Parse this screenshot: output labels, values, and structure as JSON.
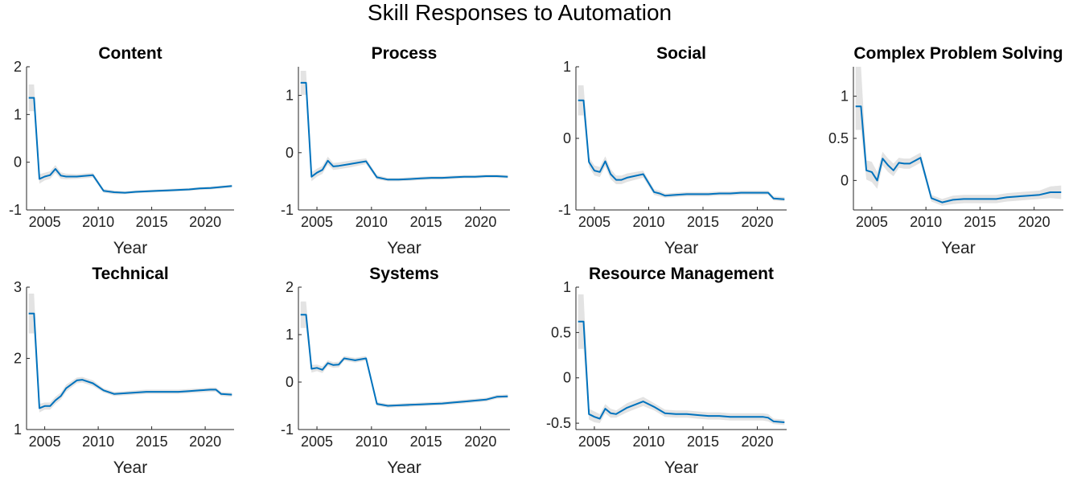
{
  "title": "Skill Responses to Automation",
  "colors": {
    "line": "#0072bd",
    "band": "#d9d9d9",
    "axis": "#262626"
  },
  "chart_data": [
    {
      "type": "line",
      "title": "Content",
      "xlabel": "Year",
      "ylabel": "",
      "xlim": [
        2003.3,
        2022.7
      ],
      "ylim": [
        -1,
        2
      ],
      "xticks": [
        2005,
        2010,
        2015,
        2020
      ],
      "yticks": [
        -1,
        0,
        1,
        2
      ],
      "ytick_labels": [
        "-1",
        "0",
        "1",
        "2"
      ],
      "x": [
        2003.5,
        2004,
        2004.5,
        2005,
        2005.5,
        2006,
        2006.5,
        2007,
        2008,
        2009.5,
        2010.5,
        2011.5,
        2012.5,
        2013.5,
        2014.5,
        2015.5,
        2016.5,
        2017.5,
        2018.5,
        2019.5,
        2020.5,
        2021.5,
        2022.5
      ],
      "y": [
        1.35,
        1.35,
        -0.35,
        -0.3,
        -0.27,
        -0.14,
        -0.28,
        -0.3,
        -0.3,
        -0.27,
        -0.6,
        -0.63,
        -0.64,
        -0.62,
        -0.61,
        -0.6,
        -0.59,
        -0.58,
        -0.57,
        -0.55,
        -0.54,
        -0.52,
        -0.5
      ],
      "lower": [
        1.07,
        1.07,
        -0.45,
        -0.38,
        -0.35,
        -0.22,
        -0.35,
        -0.36,
        -0.35,
        -0.32,
        -0.64,
        -0.67,
        -0.67,
        -0.65,
        -0.64,
        -0.63,
        -0.62,
        -0.61,
        -0.6,
        -0.58,
        -0.57,
        -0.55,
        -0.53
      ],
      "upper": [
        1.63,
        1.63,
        -0.25,
        -0.22,
        -0.19,
        -0.06,
        -0.21,
        -0.24,
        -0.25,
        -0.22,
        -0.56,
        -0.59,
        -0.61,
        -0.59,
        -0.58,
        -0.57,
        -0.56,
        -0.55,
        -0.54,
        -0.52,
        -0.51,
        -0.49,
        -0.47
      ]
    },
    {
      "type": "line",
      "title": "Process",
      "xlabel": "Year",
      "ylabel": "",
      "xlim": [
        2003.3,
        2022.7
      ],
      "ylim": [
        -1,
        1.5
      ],
      "xticks": [
        2005,
        2010,
        2015,
        2020
      ],
      "yticks": [
        -1,
        0,
        1
      ],
      "ytick_labels": [
        "-1",
        "0",
        "1"
      ],
      "x": [
        2003.5,
        2004,
        2004.5,
        2005,
        2005.5,
        2006,
        2006.5,
        2007,
        2008,
        2009.5,
        2010.5,
        2011.5,
        2012.5,
        2013.5,
        2014.5,
        2015.5,
        2016.5,
        2017.5,
        2018.5,
        2019.5,
        2020.5,
        2021.5,
        2022.5
      ],
      "y": [
        1.22,
        1.22,
        -0.42,
        -0.35,
        -0.3,
        -0.14,
        -0.24,
        -0.23,
        -0.2,
        -0.15,
        -0.43,
        -0.47,
        -0.47,
        -0.46,
        -0.45,
        -0.44,
        -0.44,
        -0.43,
        -0.42,
        -0.42,
        -0.41,
        -0.41,
        -0.42
      ],
      "lower": [
        1.01,
        1.01,
        -0.5,
        -0.42,
        -0.37,
        -0.21,
        -0.3,
        -0.29,
        -0.26,
        -0.2,
        -0.47,
        -0.5,
        -0.5,
        -0.49,
        -0.48,
        -0.47,
        -0.47,
        -0.46,
        -0.45,
        -0.45,
        -0.44,
        -0.44,
        -0.45
      ],
      "upper": [
        1.43,
        1.43,
        -0.34,
        -0.28,
        -0.23,
        -0.07,
        -0.18,
        -0.17,
        -0.14,
        -0.1,
        -0.39,
        -0.44,
        -0.44,
        -0.43,
        -0.42,
        -0.41,
        -0.41,
        -0.4,
        -0.39,
        -0.39,
        -0.38,
        -0.38,
        -0.39
      ]
    },
    {
      "type": "line",
      "title": "Social",
      "xlabel": "Year",
      "ylabel": "",
      "xlim": [
        2003.3,
        2022.7
      ],
      "ylim": [
        -1,
        1
      ],
      "xticks": [
        2005,
        2010,
        2015,
        2020
      ],
      "yticks": [
        -1,
        0,
        1
      ],
      "ytick_labels": [
        "-1",
        "0",
        "1"
      ],
      "x": [
        2003.5,
        2004,
        2004.5,
        2005,
        2005.5,
        2006,
        2006.5,
        2007,
        2007.5,
        2008,
        2009.5,
        2010.5,
        2011,
        2011.5,
        2012.5,
        2013.5,
        2014.5,
        2015.5,
        2016.5,
        2017.5,
        2018.5,
        2019.5,
        2020.5,
        2021,
        2021.5,
        2022.5
      ],
      "y": [
        0.53,
        0.53,
        -0.33,
        -0.45,
        -0.47,
        -0.32,
        -0.5,
        -0.58,
        -0.58,
        -0.55,
        -0.5,
        -0.75,
        -0.77,
        -0.8,
        -0.79,
        -0.78,
        -0.78,
        -0.78,
        -0.77,
        -0.77,
        -0.76,
        -0.76,
        -0.76,
        -0.76,
        -0.84,
        -0.85
      ],
      "lower": [
        0.32,
        0.32,
        -0.4,
        -0.52,
        -0.54,
        -0.39,
        -0.57,
        -0.64,
        -0.64,
        -0.61,
        -0.55,
        -0.79,
        -0.81,
        -0.83,
        -0.82,
        -0.81,
        -0.81,
        -0.81,
        -0.8,
        -0.8,
        -0.79,
        -0.79,
        -0.79,
        -0.79,
        -0.87,
        -0.88
      ],
      "upper": [
        0.74,
        0.74,
        -0.26,
        -0.38,
        -0.4,
        -0.25,
        -0.43,
        -0.52,
        -0.52,
        -0.49,
        -0.45,
        -0.71,
        -0.73,
        -0.77,
        -0.76,
        -0.75,
        -0.75,
        -0.75,
        -0.74,
        -0.74,
        -0.73,
        -0.73,
        -0.73,
        -0.73,
        -0.81,
        -0.82
      ]
    },
    {
      "type": "line",
      "title": "Complex Problem Solving",
      "xlabel": "Year",
      "ylabel": "",
      "xlim": [
        2003.3,
        2022.7
      ],
      "ylim": [
        -0.35,
        1.35
      ],
      "xticks": [
        2005,
        2010,
        2015,
        2020
      ],
      "yticks": [
        0,
        0.5,
        1
      ],
      "ytick_labels": [
        "0",
        "0.5",
        "1"
      ],
      "x": [
        2003.5,
        2004,
        2004.5,
        2005,
        2005.5,
        2006,
        2006.5,
        2007,
        2007.5,
        2008,
        2008.5,
        2009.5,
        2010.5,
        2011.5,
        2012.5,
        2013.5,
        2014.5,
        2015.5,
        2016.5,
        2017.5,
        2018.5,
        2019.5,
        2020.5,
        2021.5,
        2022.5
      ],
      "y": [
        0.88,
        0.88,
        0.12,
        0.1,
        0.0,
        0.26,
        0.18,
        0.12,
        0.21,
        0.2,
        0.2,
        0.27,
        -0.21,
        -0.26,
        -0.23,
        -0.22,
        -0.22,
        -0.22,
        -0.22,
        -0.2,
        -0.19,
        -0.18,
        -0.17,
        -0.14,
        -0.14
      ],
      "lower": [
        0.6,
        0.6,
        0.01,
        -0.02,
        -0.1,
        0.18,
        0.1,
        0.05,
        0.15,
        0.14,
        0.14,
        0.21,
        -0.25,
        -0.3,
        -0.28,
        -0.27,
        -0.27,
        -0.27,
        -0.27,
        -0.25,
        -0.24,
        -0.23,
        -0.22,
        -0.21,
        -0.22
      ],
      "upper": [
        1.35,
        1.35,
        0.24,
        0.22,
        0.1,
        0.34,
        0.26,
        0.2,
        0.27,
        0.26,
        0.26,
        0.33,
        -0.17,
        -0.22,
        -0.18,
        -0.17,
        -0.17,
        -0.17,
        -0.17,
        -0.15,
        -0.14,
        -0.13,
        -0.12,
        -0.07,
        -0.06
      ]
    },
    {
      "type": "line",
      "title": "Technical",
      "xlabel": "Year",
      "ylabel": "",
      "xlim": [
        2003.3,
        2022.7
      ],
      "ylim": [
        1,
        3
      ],
      "xticks": [
        2005,
        2010,
        2015,
        2020
      ],
      "yticks": [
        1,
        2,
        3
      ],
      "ytick_labels": [
        "1",
        "2",
        "3"
      ],
      "x": [
        2003.5,
        2004,
        2004.5,
        2005,
        2005.5,
        2006,
        2006.5,
        2007,
        2008,
        2008.5,
        2009.5,
        2010.5,
        2011.5,
        2012.5,
        2013.5,
        2014.5,
        2015.5,
        2016.5,
        2017.5,
        2018.5,
        2019.5,
        2020.5,
        2021,
        2021.5,
        2022.5
      ],
      "y": [
        2.63,
        2.63,
        1.3,
        1.33,
        1.33,
        1.41,
        1.47,
        1.58,
        1.69,
        1.7,
        1.65,
        1.55,
        1.5,
        1.51,
        1.52,
        1.53,
        1.53,
        1.53,
        1.53,
        1.54,
        1.55,
        1.56,
        1.56,
        1.5,
        1.49
      ],
      "lower": [
        2.35,
        2.35,
        1.24,
        1.28,
        1.28,
        1.36,
        1.42,
        1.53,
        1.65,
        1.66,
        1.61,
        1.52,
        1.47,
        1.48,
        1.49,
        1.5,
        1.5,
        1.5,
        1.5,
        1.51,
        1.52,
        1.53,
        1.53,
        1.47,
        1.46
      ],
      "upper": [
        2.91,
        2.91,
        1.36,
        1.38,
        1.38,
        1.46,
        1.52,
        1.63,
        1.73,
        1.74,
        1.69,
        1.58,
        1.53,
        1.54,
        1.55,
        1.56,
        1.56,
        1.56,
        1.56,
        1.57,
        1.58,
        1.59,
        1.59,
        1.53,
        1.52
      ]
    },
    {
      "type": "line",
      "title": "Systems",
      "xlabel": "Year",
      "ylabel": "",
      "xlim": [
        2003.3,
        2022.7
      ],
      "ylim": [
        -1,
        2
      ],
      "xticks": [
        2005,
        2010,
        2015,
        2020
      ],
      "yticks": [
        -1,
        0,
        1,
        2
      ],
      "ytick_labels": [
        "-1",
        "0",
        "1",
        "2"
      ],
      "x": [
        2003.5,
        2004,
        2004.5,
        2005,
        2005.5,
        2006,
        2006.5,
        2007,
        2007.5,
        2008,
        2008.5,
        2009.5,
        2010.5,
        2011.5,
        2012.5,
        2013.5,
        2014.5,
        2015.5,
        2016.5,
        2017.5,
        2018.5,
        2019.5,
        2020.5,
        2021.5,
        2022.5
      ],
      "y": [
        1.42,
        1.42,
        0.28,
        0.3,
        0.26,
        0.4,
        0.36,
        0.37,
        0.5,
        0.48,
        0.46,
        0.5,
        -0.46,
        -0.5,
        -0.49,
        -0.48,
        -0.47,
        -0.46,
        -0.45,
        -0.43,
        -0.41,
        -0.39,
        -0.37,
        -0.31,
        -0.3
      ],
      "lower": [
        1.14,
        1.14,
        0.2,
        0.23,
        0.19,
        0.34,
        0.3,
        0.31,
        0.45,
        0.43,
        0.41,
        0.45,
        -0.5,
        -0.54,
        -0.53,
        -0.52,
        -0.51,
        -0.5,
        -0.49,
        -0.47,
        -0.45,
        -0.43,
        -0.41,
        -0.35,
        -0.34
      ],
      "upper": [
        1.7,
        1.7,
        0.36,
        0.37,
        0.33,
        0.46,
        0.42,
        0.43,
        0.55,
        0.53,
        0.51,
        0.55,
        -0.42,
        -0.46,
        -0.45,
        -0.44,
        -0.43,
        -0.42,
        -0.41,
        -0.39,
        -0.37,
        -0.35,
        -0.33,
        -0.27,
        -0.26
      ]
    },
    {
      "type": "line",
      "title": "Resource Management",
      "xlabel": "Year",
      "ylabel": "",
      "xlim": [
        2003.3,
        2022.7
      ],
      "ylim": [
        -0.57,
        1
      ],
      "xticks": [
        2005,
        2010,
        2015,
        2020
      ],
      "yticks": [
        -0.5,
        0,
        0.5,
        1
      ],
      "ytick_labels": [
        "-0.5",
        "0",
        "0.5",
        "1"
      ],
      "x": [
        2003.5,
        2004,
        2004.5,
        2005,
        2005.5,
        2006,
        2006.5,
        2007,
        2008,
        2009.5,
        2010.5,
        2011.5,
        2012.5,
        2013.5,
        2014.5,
        2015.5,
        2016.5,
        2017.5,
        2018.5,
        2019.5,
        2020.5,
        2021,
        2021.5,
        2022.5
      ],
      "y": [
        0.62,
        0.62,
        -0.4,
        -0.43,
        -0.45,
        -0.34,
        -0.39,
        -0.4,
        -0.33,
        -0.26,
        -0.32,
        -0.39,
        -0.4,
        -0.4,
        -0.41,
        -0.42,
        -0.42,
        -0.43,
        -0.43,
        -0.43,
        -0.43,
        -0.44,
        -0.48,
        -0.49
      ],
      "lower": [
        0.32,
        0.32,
        -0.46,
        -0.49,
        -0.5,
        -0.39,
        -0.44,
        -0.44,
        -0.38,
        -0.31,
        -0.36,
        -0.43,
        -0.44,
        -0.44,
        -0.45,
        -0.46,
        -0.46,
        -0.47,
        -0.47,
        -0.47,
        -0.47,
        -0.48,
        -0.51,
        -0.52
      ],
      "upper": [
        0.92,
        0.92,
        -0.34,
        -0.37,
        -0.4,
        -0.29,
        -0.34,
        -0.36,
        -0.28,
        -0.21,
        -0.28,
        -0.35,
        -0.36,
        -0.36,
        -0.37,
        -0.38,
        -0.38,
        -0.39,
        -0.39,
        -0.39,
        -0.39,
        -0.4,
        -0.45,
        -0.46
      ]
    }
  ]
}
